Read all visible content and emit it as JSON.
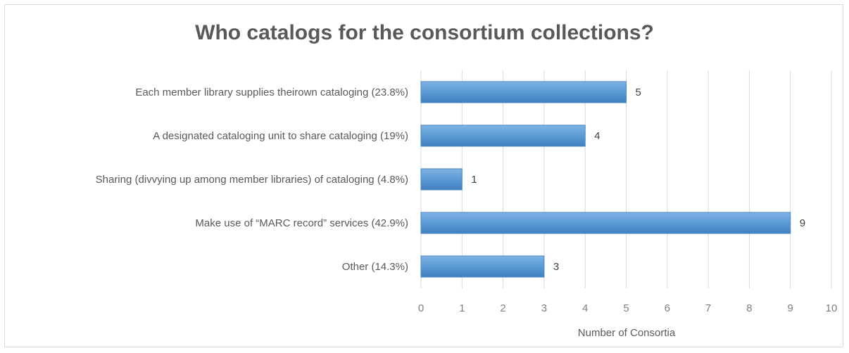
{
  "chart_data": {
    "type": "bar",
    "orientation": "horizontal",
    "title": "Who catalogs for the consortium collections?",
    "xlabel": "Number of Consortia",
    "ylabel": "",
    "xlim": [
      0,
      10
    ],
    "x_ticks": [
      "0",
      "1",
      "2",
      "3",
      "4",
      "5",
      "6",
      "7",
      "8",
      "9",
      "10"
    ],
    "categories": [
      "Each member library supplies theirown cataloging (23.8%)",
      "A designated cataloging unit to share cataloging (19%)",
      "Sharing (divvying up among member libraries) of cataloging (4.8%)",
      "Make use of “MARC record” services (42.9%)",
      "Other (14.3%)"
    ],
    "values": [
      5,
      4,
      1,
      9,
      3
    ],
    "data_labels": [
      "5",
      "4",
      "1",
      "9",
      "3"
    ],
    "grid": true,
    "legend": "none",
    "bar_color": "#5b9bd5"
  }
}
